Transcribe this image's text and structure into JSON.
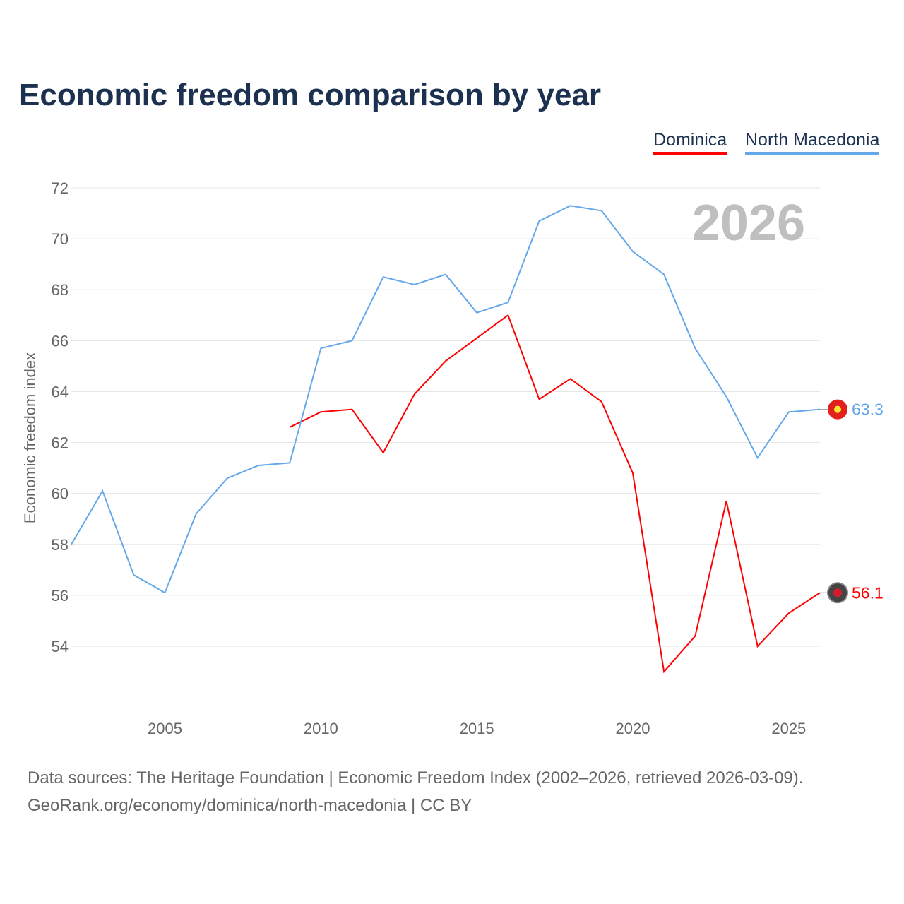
{
  "chart_data": {
    "type": "line",
    "title": "Economic freedom comparison by year",
    "ylabel": "Economic freedom index",
    "xlabel": "",
    "ylim": [
      52,
      72.5
    ],
    "xlim": [
      2002,
      2026
    ],
    "yticks": [
      54,
      56,
      58,
      60,
      62,
      64,
      66,
      68,
      70,
      72
    ],
    "xticks": [
      2005,
      2010,
      2015,
      2020,
      2025
    ],
    "grid": true,
    "legend_placement": "top-right",
    "year_watermark": "2026",
    "series": [
      {
        "name": "Dominica",
        "color": "#ff0000",
        "end_label": "56.1",
        "x": [
          2009,
          2010,
          2011,
          2012,
          2013,
          2014,
          2015,
          2016,
          2017,
          2018,
          2019,
          2020,
          2021,
          2022,
          2023,
          2024,
          2025,
          2026
        ],
        "values": [
          62.6,
          63.2,
          63.3,
          61.6,
          63.9,
          65.2,
          66.1,
          67.0,
          63.7,
          64.5,
          63.6,
          60.8,
          53.0,
          54.4,
          59.7,
          54.0,
          55.3,
          56.1
        ]
      },
      {
        "name": "North Macedonia",
        "color": "#64a8ea",
        "end_label": "63.3",
        "x": [
          2002,
          2003,
          2004,
          2005,
          2006,
          2007,
          2008,
          2009,
          2010,
          2011,
          2012,
          2013,
          2014,
          2015,
          2016,
          2017,
          2018,
          2019,
          2020,
          2021,
          2022,
          2023,
          2024,
          2025,
          2026
        ],
        "values": [
          58.0,
          60.1,
          56.8,
          56.1,
          59.2,
          60.6,
          61.1,
          61.2,
          65.7,
          66.0,
          68.5,
          68.2,
          68.6,
          67.1,
          67.5,
          70.7,
          71.3,
          71.1,
          69.5,
          68.6,
          65.7,
          63.8,
          61.4,
          63.2,
          63.3
        ]
      }
    ]
  },
  "footer": {
    "line1": "Data sources: The Heritage Foundation | Economic Freedom Index (2002–2026, retrieved 2026-03-09).",
    "line2": "GeoRank.org/economy/dominica/north-macedonia | CC BY"
  }
}
